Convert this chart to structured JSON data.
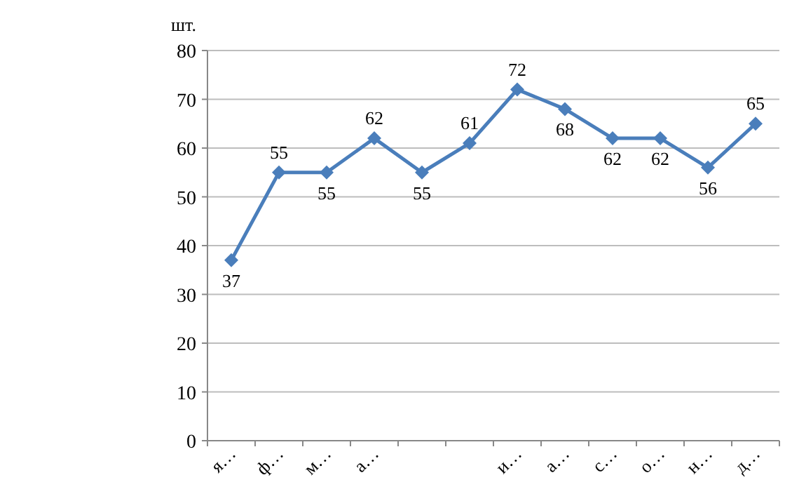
{
  "chart_data": {
    "type": "line",
    "ylabel": "шт.",
    "categories": [
      "я…",
      "ф…",
      "м…",
      "а…",
      null,
      null,
      "и…",
      "а…",
      "с…",
      "о…",
      "н…",
      "д…"
    ],
    "series": [
      {
        "color": "#4a7ebb",
        "values": [
          37,
          55,
          55,
          62,
          55,
          61,
          72,
          68,
          62,
          62,
          56,
          65
        ]
      }
    ],
    "ylim": [
      0,
      80
    ],
    "yticks": [
      0,
      10,
      20,
      30,
      40,
      50,
      60,
      70,
      80
    ],
    "grid": "y",
    "marker": "diamond",
    "line_style": "solid",
    "data_labels": true
  }
}
